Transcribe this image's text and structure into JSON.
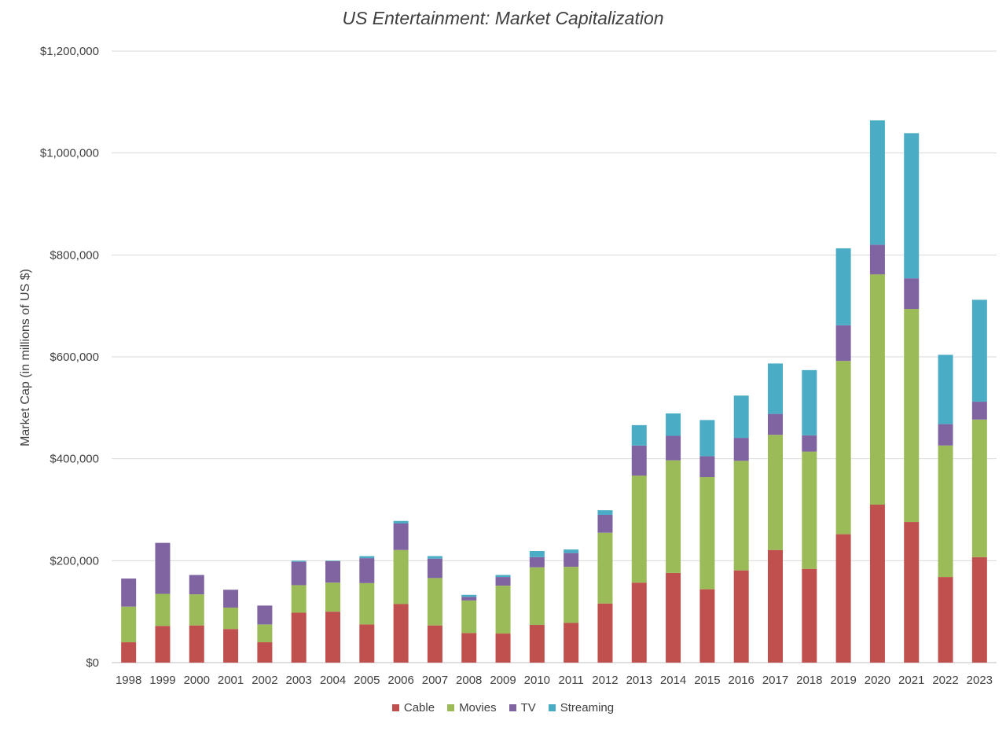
{
  "chart_data": {
    "type": "bar",
    "stacked": true,
    "title": "US Entertainment: Market Capitalization",
    "xlabel": "",
    "ylabel": "Market Cap (in millions of US $)",
    "ylim": [
      0,
      1200000
    ],
    "yticks": [
      0,
      200000,
      400000,
      600000,
      800000,
      1000000,
      1200000
    ],
    "ytick_labels": [
      "$0",
      "$200,000",
      "$400,000",
      "$600,000",
      "$800,000",
      "$1,000,000",
      "$1,200,000"
    ],
    "grid": true,
    "legend_position": "bottom",
    "categories": [
      "1998",
      "1999",
      "2000",
      "2001",
      "2002",
      "2003",
      "2004",
      "2005",
      "2006",
      "2007",
      "2008",
      "2009",
      "2010",
      "2011",
      "2012",
      "2013",
      "2014",
      "2015",
      "2016",
      "2017",
      "2018",
      "2019",
      "2020",
      "2021",
      "2022",
      "2023"
    ],
    "series": [
      {
        "name": "Cable",
        "color": "#c0504d",
        "values": [
          40000,
          72000,
          73000,
          66000,
          40000,
          98000,
          100000,
          75000,
          115000,
          73000,
          58000,
          57000,
          74000,
          78000,
          116000,
          157000,
          176000,
          144000,
          181000,
          221000,
          184000,
          252000,
          310000,
          276000,
          168000,
          207000
        ]
      },
      {
        "name": "Movies",
        "color": "#9bbb59",
        "values": [
          70000,
          63000,
          61000,
          42000,
          35000,
          54000,
          57000,
          81000,
          106000,
          93000,
          64000,
          94000,
          113000,
          110000,
          139000,
          210000,
          221000,
          220000,
          215000,
          226000,
          230000,
          340000,
          452000,
          418000,
          258000,
          270000
        ]
      },
      {
        "name": "TV",
        "color": "#8064a2",
        "values": [
          55000,
          100000,
          38000,
          35000,
          37000,
          46000,
          42000,
          49000,
          52000,
          38000,
          7000,
          17000,
          20000,
          27000,
          35000,
          59000,
          48000,
          41000,
          45000,
          41000,
          32000,
          70000,
          58000,
          60000,
          42000,
          35000
        ]
      },
      {
        "name": "Streaming",
        "color": "#4bacc6",
        "values": [
          0,
          0,
          0,
          0,
          0,
          2000,
          1000,
          4000,
          5000,
          5000,
          4000,
          4000,
          12000,
          7000,
          9000,
          40000,
          44000,
          71000,
          83000,
          99000,
          128000,
          151000,
          244000,
          285000,
          136000,
          200000
        ]
      }
    ]
  }
}
